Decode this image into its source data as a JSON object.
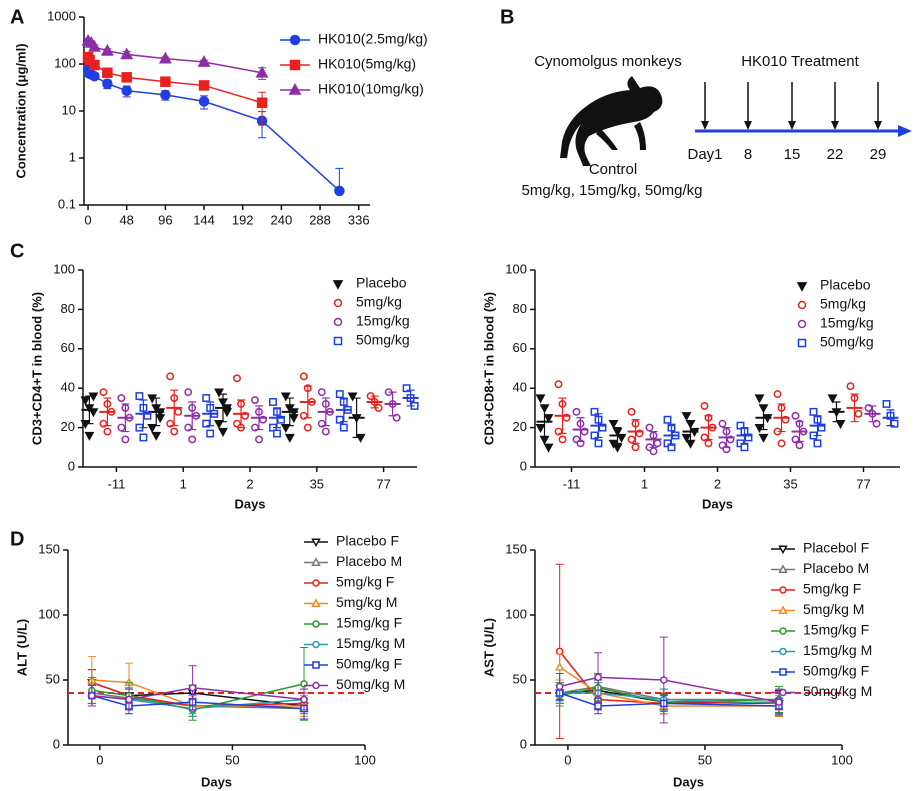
{
  "panels": [
    "A",
    "B",
    "C",
    "D"
  ],
  "diagram": {
    "title": "Cynomolgus monkeys",
    "treatment": "HK010 Treatment",
    "control": "Control",
    "doses": "5mg/kg, 15mg/kg, 50mg/kg",
    "days": [
      "Day1",
      "8",
      "15",
      "22",
      "29"
    ],
    "arrow_color": "#1f3fe0"
  },
  "chart_data": [
    {
      "type": "line",
      "ylabel": "Concentration (μg/ml)",
      "log_y": true,
      "xlim": [
        -5,
        350
      ],
      "xticks": [
        0,
        48,
        96,
        144,
        192,
        240,
        288,
        336
      ],
      "ylim": [
        0.1,
        1000
      ],
      "yticks": [
        0.1,
        1,
        10,
        100,
        1000
      ],
      "legend": "upper right",
      "series": [
        {
          "name": "HK010(2.5mg/kg)",
          "color": "#1f3fe0",
          "marker": "circle",
          "filled": true,
          "x": [
            0,
            1,
            2,
            4,
            8,
            24,
            48,
            96,
            144,
            216,
            312
          ],
          "values": [
            80,
            65,
            62,
            60,
            55,
            38,
            27,
            22,
            16,
            6.2,
            0.2
          ],
          "errors": [
            10,
            8,
            8,
            8,
            8,
            8,
            7,
            5,
            5,
            3.5,
            0.4
          ]
        },
        {
          "name": "HK010(5mg/kg)",
          "color": "#e8201e",
          "marker": "square",
          "filled": true,
          "x": [
            0,
            2,
            8,
            24,
            48,
            96,
            144,
            216
          ],
          "values": [
            140,
            120,
            95,
            65,
            52,
            42,
            35,
            15
          ],
          "errors": [
            20,
            15,
            10,
            8,
            6,
            5,
            5,
            10
          ]
        },
        {
          "name": "HK010(10mg/kg)",
          "color": "#8e2ea6",
          "marker": "triangle-up",
          "filled": true,
          "x": [
            0,
            4,
            8,
            24,
            48,
            96,
            144,
            216
          ],
          "values": [
            310,
            280,
            230,
            190,
            160,
            130,
            110,
            65
          ],
          "errors": [
            40,
            30,
            25,
            20,
            25,
            10,
            10,
            18
          ]
        }
      ]
    },
    {
      "type": "strip",
      "ylabel": "CD3+CD4+T in blood (%)",
      "xlabel": "Days",
      "categories": [
        "-11",
        "1",
        "2",
        "35",
        "77"
      ],
      "ylim": [
        0,
        100
      ],
      "yticks": [
        0,
        20,
        40,
        60,
        80,
        100
      ],
      "legend": "upper right",
      "series": [
        {
          "name": "Placebo",
          "color": "#111111",
          "marker": "triangle-down",
          "filled": true,
          "values": [
            [
              34,
              30,
              28,
              22,
              16,
              36
            ],
            [
              35,
              30,
              25,
              20,
              16,
              28
            ],
            [
              38,
              33,
              28,
              22,
              18,
              30
            ],
            [
              36,
              30,
              25,
              20,
              15,
              28
            ],
            [
              36,
              25,
              15
            ]
          ],
          "means": [
            29,
            28,
            30,
            28,
            25
          ],
          "sds": [
            7,
            7,
            7,
            7,
            10
          ]
        },
        {
          "name": "5mg/kg",
          "color": "#e8201e",
          "marker": "circle",
          "filled": false,
          "values": [
            [
              38,
              32,
              28,
              22,
              18
            ],
            [
              46,
              35,
              28,
              22,
              18
            ],
            [
              45,
              32,
              26,
              22,
              20
            ],
            [
              46,
              40,
              33,
              26,
              20
            ],
            [
              36,
              33,
              30
            ]
          ],
          "means": [
            28,
            30,
            27,
            33,
            33
          ],
          "sds": [
            7,
            9,
            7,
            8,
            3
          ]
        },
        {
          "name": "15mg/kg",
          "color": "#8e2ea6",
          "marker": "circle",
          "filled": false,
          "values": [
            [
              35,
              30,
              25,
              20,
              14
            ],
            [
              38,
              30,
              26,
              20,
              14
            ],
            [
              34,
              28,
              24,
              20,
              14
            ],
            [
              38,
              32,
              28,
              22,
              18
            ],
            [
              38,
              32,
              25
            ]
          ],
          "means": [
            25,
            26,
            25,
            28,
            32
          ],
          "sds": [
            7,
            7,
            6,
            7,
            6
          ]
        },
        {
          "name": "50mg/kg",
          "color": "#1f3fe0",
          "marker": "square",
          "filled": false,
          "values": [
            [
              36,
              30,
              26,
              20,
              15
            ],
            [
              35,
              30,
              27,
              22,
              17
            ],
            [
              33,
              28,
              24,
              20,
              17
            ],
            [
              37,
              33,
              29,
              24,
              20
            ],
            [
              40,
              35,
              31
            ]
          ],
          "means": [
            27,
            27,
            25,
            29,
            35
          ],
          "sds": [
            7,
            6,
            5,
            6,
            4
          ]
        }
      ]
    },
    {
      "type": "strip",
      "ylabel": "CD3+CD8+T in blood (%)",
      "xlabel": "Days",
      "categories": [
        "-11",
        "1",
        "2",
        "35",
        "77"
      ],
      "ylim": [
        0,
        100
      ],
      "yticks": [
        0,
        20,
        40,
        60,
        80,
        100
      ],
      "legend": "upper right",
      "series": [
        {
          "name": "Placebo",
          "color": "#111111",
          "marker": "triangle-down",
          "filled": true,
          "values": [
            [
              35,
              30,
              25,
              20,
              14,
              10
            ],
            [
              22,
              18,
              15,
              12,
              10
            ],
            [
              26,
              22,
              18,
              15,
              12
            ],
            [
              35,
              30,
              25,
              20,
              15
            ],
            [
              35,
              28,
              22
            ]
          ],
          "means": [
            23,
            16,
            18,
            25,
            28
          ],
          "sds": [
            8,
            4,
            5,
            6,
            5
          ]
        },
        {
          "name": "5mg/kg",
          "color": "#e8201e",
          "marker": "circle",
          "filled": false,
          "values": [
            [
              42,
              32,
              25,
              18,
              14
            ],
            [
              28,
              22,
              17,
              14,
              10
            ],
            [
              31,
              25,
              20,
              15,
              12
            ],
            [
              37,
              30,
              24,
              18,
              12
            ],
            [
              41,
              35,
              27
            ]
          ],
          "means": [
            26,
            18,
            20,
            25,
            30
          ],
          "sds": [
            9,
            6,
            6,
            7,
            7
          ]
        },
        {
          "name": "15mg/kg",
          "color": "#8e2ea6",
          "marker": "circle",
          "filled": false,
          "values": [
            [
              28,
              22,
              18,
              14,
              12
            ],
            [
              20,
              16,
              12,
              10,
              8
            ],
            [
              22,
              18,
              14,
              11,
              9
            ],
            [
              26,
              22,
              18,
              14,
              11
            ],
            [
              30,
              27,
              22
            ]
          ],
          "means": [
            19,
            14,
            15,
            18,
            27
          ],
          "sds": [
            6,
            4,
            5,
            5,
            4
          ]
        },
        {
          "name": "50mg/kg",
          "color": "#1f3fe0",
          "marker": "square",
          "filled": false,
          "values": [
            [
              28,
              24,
              20,
              16,
              12
            ],
            [
              24,
              20,
              16,
              12,
              10
            ],
            [
              21,
              18,
              15,
              12,
              10
            ],
            [
              28,
              24,
              20,
              16,
              12
            ],
            [
              32,
              26,
              22
            ]
          ],
          "means": [
            21,
            16,
            16,
            21,
            25
          ],
          "sds": [
            6,
            5,
            4,
            5,
            4
          ]
        }
      ]
    },
    {
      "type": "line",
      "ylabel": "ALT (U/L)",
      "xlabel": "Days",
      "xlim": [
        -12,
        100
      ],
      "xticks": [
        0,
        50,
        100
      ],
      "ylim": [
        0,
        150
      ],
      "yticks": [
        0,
        50,
        100,
        150
      ],
      "legend": "upper right",
      "reference_line": {
        "value": 40,
        "color": "#e8201e"
      },
      "series": [
        {
          "name": "Placebo F",
          "color": "#111111",
          "marker": "triangle-down",
          "filled": false,
          "x": [
            -3,
            11,
            35,
            77
          ],
          "values": [
            48,
            38,
            40,
            30
          ],
          "errors": [
            10,
            8,
            6,
            10
          ]
        },
        {
          "name": "Placebo M",
          "color": "#777777",
          "marker": "triangle-up",
          "filled": false,
          "x": [
            -3,
            11,
            35,
            77
          ],
          "values": [
            40,
            36,
            30,
            28
          ],
          "errors": [
            8,
            8,
            6,
            8
          ]
        },
        {
          "name": "5mg/kg F",
          "color": "#e8201e",
          "marker": "circle",
          "filled": false,
          "x": [
            -3,
            11,
            35,
            77
          ],
          "values": [
            48,
            38,
            30,
            32
          ],
          "errors": [
            10,
            8,
            8,
            8
          ]
        },
        {
          "name": "5mg/kg M",
          "color": "#f08a1c",
          "marker": "triangle-up",
          "filled": false,
          "x": [
            -3,
            11,
            35,
            77
          ],
          "values": [
            50,
            48,
            30,
            30
          ],
          "errors": [
            18,
            15,
            8,
            8
          ]
        },
        {
          "name": "15mg/kg F",
          "color": "#2a9a2a",
          "marker": "circle",
          "filled": false,
          "x": [
            -3,
            11,
            35,
            77
          ],
          "values": [
            42,
            38,
            27,
            47
          ],
          "errors": [
            10,
            10,
            8,
            28
          ]
        },
        {
          "name": "15mg/kg M",
          "color": "#2a9aa8",
          "marker": "circle",
          "filled": false,
          "x": [
            -3,
            11,
            35,
            77
          ],
          "values": [
            38,
            35,
            28,
            35
          ],
          "errors": [
            8,
            8,
            6,
            8
          ]
        },
        {
          "name": "50mg/kg F",
          "color": "#1f3fe0",
          "marker": "square",
          "filled": false,
          "x": [
            -3,
            11,
            35,
            77
          ],
          "values": [
            38,
            30,
            33,
            28
          ],
          "errors": [
            8,
            6,
            6,
            8
          ]
        },
        {
          "name": "50mg/kg M",
          "color": "#8e2ea6",
          "marker": "circle",
          "filled": false,
          "x": [
            -3,
            11,
            35,
            77
          ],
          "values": [
            38,
            35,
            44,
            35
          ],
          "errors": [
            8,
            8,
            17,
            8
          ]
        }
      ]
    },
    {
      "type": "line",
      "ylabel": "AST (U/L)",
      "xlabel": "Days",
      "xlim": [
        -12,
        100
      ],
      "xticks": [
        0,
        50,
        100
      ],
      "ylim": [
        0,
        150
      ],
      "yticks": [
        0,
        50,
        100,
        150
      ],
      "legend": "upper right",
      "reference_line": {
        "value": 40,
        "color": "#e8201e"
      },
      "series": [
        {
          "name": "Placebol F",
          "color": "#111111",
          "marker": "triangle-down",
          "filled": false,
          "x": [
            -3,
            11,
            35,
            77
          ],
          "values": [
            40,
            42,
            33,
            32
          ],
          "errors": [
            8,
            8,
            6,
            10
          ]
        },
        {
          "name": "Placebo M",
          "color": "#777777",
          "marker": "triangle-up",
          "filled": false,
          "x": [
            -3,
            11,
            35,
            77
          ],
          "values": [
            40,
            45,
            35,
            35
          ],
          "errors": [
            8,
            10,
            8,
            8
          ]
        },
        {
          "name": "5mg/kg F",
          "color": "#e8201e",
          "marker": "circle",
          "filled": false,
          "x": [
            -3,
            11,
            35,
            77
          ],
          "values": [
            72,
            35,
            32,
            33
          ],
          "errors": [
            67,
            8,
            8,
            8
          ]
        },
        {
          "name": "5mg/kg M",
          "color": "#f08a1c",
          "marker": "triangle-up",
          "filled": false,
          "x": [
            -3,
            11,
            35,
            77
          ],
          "values": [
            60,
            40,
            30,
            30
          ],
          "errors": [
            10,
            8,
            6,
            8
          ]
        },
        {
          "name": "15mg/kg F",
          "color": "#2a9a2a",
          "marker": "circle",
          "filled": false,
          "x": [
            -3,
            11,
            35,
            77
          ],
          "values": [
            38,
            44,
            33,
            35
          ],
          "errors": [
            8,
            10,
            6,
            10
          ]
        },
        {
          "name": "15mg/kg M",
          "color": "#2a9aa8",
          "marker": "circle",
          "filled": false,
          "x": [
            -3,
            11,
            35,
            77
          ],
          "values": [
            40,
            40,
            35,
            32
          ],
          "errors": [
            8,
            8,
            8,
            8
          ]
        },
        {
          "name": "50mg/kg F",
          "color": "#1f3fe0",
          "marker": "square",
          "filled": false,
          "x": [
            -3,
            11,
            35,
            77
          ],
          "values": [
            40,
            30,
            32,
            30
          ],
          "errors": [
            6,
            6,
            6,
            6
          ]
        },
        {
          "name": "50mg/kg M",
          "color": "#8e2ea6",
          "marker": "circle",
          "filled": false,
          "x": [
            -3,
            11,
            35,
            77
          ],
          "values": [
            45,
            52,
            50,
            33
          ],
          "errors": [
            10,
            19,
            33,
            10
          ]
        }
      ]
    }
  ]
}
